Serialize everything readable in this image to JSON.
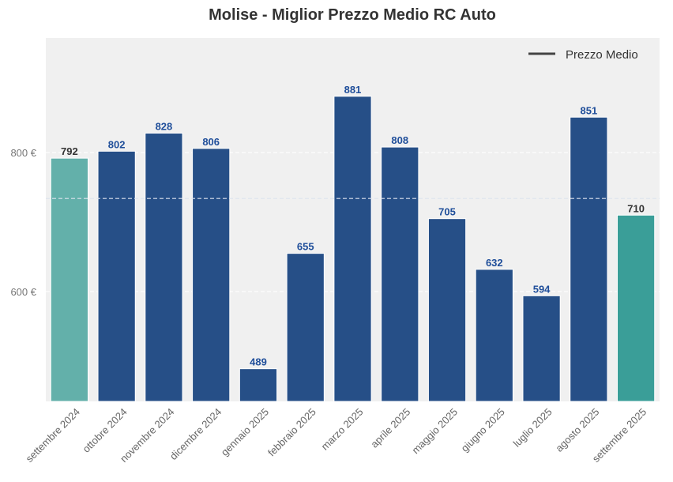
{
  "chart_data": {
    "type": "bar",
    "title": "Molise - Miglior Prezzo Medio RC Auto",
    "xlabel": "",
    "ylabel": "",
    "categories": [
      "settembre 2024",
      "ottobre 2024",
      "novembre 2024",
      "dicembre 2024",
      "gennaio 2025",
      "febbraio 2025",
      "marzo 2025",
      "aprile 2025",
      "maggio 2025",
      "giugno 2025",
      "luglio 2025",
      "agosto 2025",
      "settembre 2025"
    ],
    "values": [
      792,
      802,
      828,
      806,
      489,
      655,
      881,
      808,
      705,
      632,
      594,
      851,
      710
    ],
    "value_labels": [
      "792",
      "802",
      "828",
      "806",
      "489",
      "655",
      "881",
      "808",
      "705",
      "632",
      "594",
      "851",
      "710"
    ],
    "bar_colors": [
      "#63b0aa",
      "#264f87",
      "#264f87",
      "#264f87",
      "#264f87",
      "#264f87",
      "#264f87",
      "#264f87",
      "#264f87",
      "#264f87",
      "#264f87",
      "#264f87",
      "#3a9e98"
    ],
    "label_colors": [
      "#333333",
      "#1f4e9a",
      "#1f4e9a",
      "#1f4e9a",
      "#1f4e9a",
      "#1f4e9a",
      "#1f4e9a",
      "#1f4e9a",
      "#1f4e9a",
      "#1f4e9a",
      "#1f4e9a",
      "#1f4e9a",
      "#333333"
    ],
    "yticks": [
      600,
      800
    ],
    "ytick_labels": [
      "600 €",
      "800 €"
    ],
    "ylim": [
      442,
      965
    ],
    "mean_value": 734,
    "legend": {
      "entries": [
        "Prezzo Medio"
      ],
      "placement": "top-right"
    },
    "grid": true
  }
}
